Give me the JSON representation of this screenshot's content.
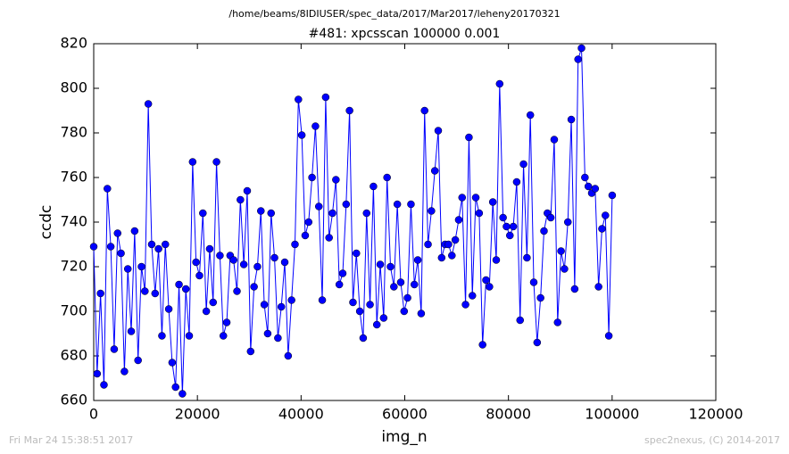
{
  "chart_data": {
    "type": "line",
    "suptitle": "/home/beams/8IDIUSER/spec_data/2017/Mar2017/leheny20170321",
    "title": "#481: xpcsscan 100000 0.001",
    "xlabel": "img_n",
    "ylabel": "ccdc",
    "footer_left": "Fri Mar 24 15:38:51 2017",
    "footer_right": "spec2nexus, (C) 2014-2017",
    "xlim": [
      0,
      120000
    ],
    "xticks": [
      0,
      20000,
      40000,
      60000,
      80000,
      100000,
      120000
    ],
    "ylim": [
      660,
      820
    ],
    "yticks": [
      660,
      680,
      700,
      720,
      740,
      760,
      780,
      800,
      820
    ],
    "color": "#0000ff",
    "x": [
      0,
      658,
      1316,
      1974,
      2632,
      3290,
      3948,
      4606,
      5264,
      5922,
      6580,
      7238,
      7896,
      8554,
      9212,
      9870,
      10528,
      11186,
      11844,
      12502,
      13160,
      13818,
      14476,
      15134,
      15792,
      16450,
      17108,
      17766,
      18424,
      19082,
      19740,
      20398,
      21056,
      21714,
      22372,
      23030,
      23688,
      24346,
      25004,
      25662,
      26320,
      26978,
      27636,
      28294,
      28952,
      29610,
      30268,
      30926,
      31584,
      32242,
      32900,
      33558,
      34216,
      34874,
      35532,
      36190,
      36848,
      37506,
      38164,
      38822,
      39480,
      40138,
      40796,
      41454,
      42112,
      42770,
      43428,
      44086,
      44744,
      45402,
      46060,
      46718,
      47376,
      48034,
      48692,
      49350,
      50008,
      50666,
      51324,
      51982,
      52640,
      53298,
      53956,
      54614,
      55272,
      55930,
      56588,
      57246,
      57904,
      58562,
      59220,
      59878,
      60536,
      61194,
      61852,
      62510,
      63168,
      63826,
      64484,
      65142,
      65800,
      66458,
      67116,
      67774,
      68432,
      69090,
      69748,
      70406,
      71064,
      71722,
      72380,
      73038,
      73696,
      74354,
      75012,
      75670,
      76328,
      76986,
      77644,
      78302,
      78960,
      79618,
      80276,
      80934,
      81592,
      82250,
      82908,
      83566,
      84224,
      84882,
      85540,
      86198,
      86856,
      87514,
      88172,
      88830,
      89488,
      90146,
      90804,
      91462,
      92120,
      92778,
      93436,
      94094,
      94752,
      95410,
      96068,
      96726,
      97384,
      98042,
      98700,
      99358,
      100016
    ],
    "values": [
      729,
      672,
      708,
      667,
      755,
      729,
      683,
      735,
      726,
      673,
      719,
      691,
      736,
      678,
      720,
      709,
      793,
      730,
      708,
      728,
      689,
      730,
      701,
      677,
      666,
      712,
      663,
      710,
      689,
      767,
      722,
      716,
      744,
      700,
      728,
      704,
      767,
      725,
      689,
      695,
      725,
      723,
      709,
      750,
      721,
      754,
      682,
      711,
      720,
      745,
      703,
      690,
      744,
      724,
      688,
      702,
      722,
      680,
      705,
      730,
      795,
      779,
      734,
      740,
      760,
      783,
      747,
      705,
      796,
      733,
      744,
      759,
      712,
      717,
      748,
      790,
      704,
      726,
      700,
      688,
      744,
      703,
      756,
      694,
      721,
      697,
      760,
      720,
      711,
      748,
      713,
      700,
      706,
      748,
      712,
      723,
      699,
      790,
      730,
      745,
      763,
      781,
      724,
      730,
      730,
      725,
      732,
      741,
      751,
      703,
      778,
      707,
      751,
      744,
      685,
      714,
      711,
      749,
      723,
      802,
      742,
      738,
      734,
      738,
      758,
      696,
      766,
      724,
      788,
      713,
      686,
      706,
      736,
      744,
      742,
      777,
      695,
      727,
      719,
      740,
      786,
      710,
      813,
      818,
      760,
      756,
      753,
      755,
      711,
      737,
      743,
      689,
      752
    ]
  }
}
